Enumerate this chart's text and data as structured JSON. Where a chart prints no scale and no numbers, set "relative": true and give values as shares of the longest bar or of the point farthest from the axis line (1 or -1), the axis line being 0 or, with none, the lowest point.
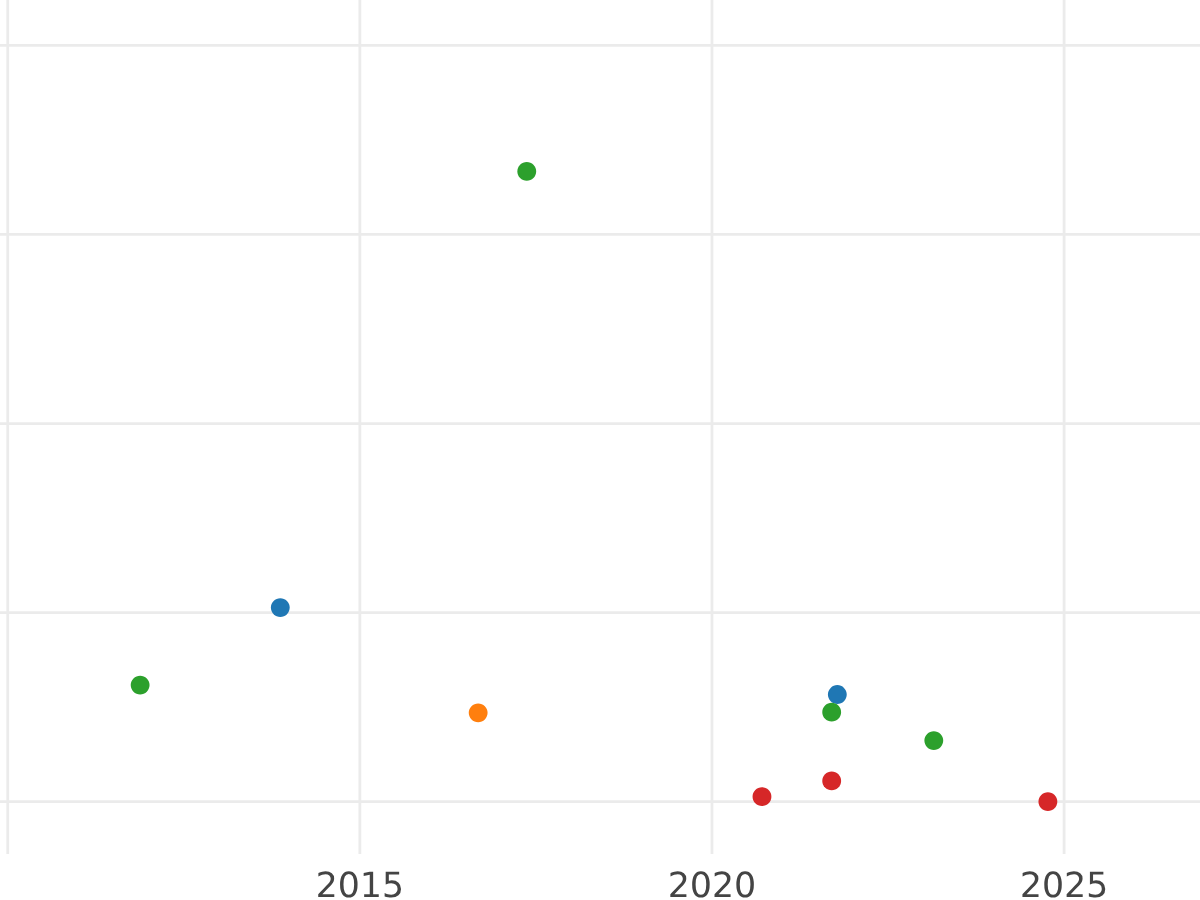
{
  "chart_data": {
    "type": "scatter",
    "relative": true,
    "xlim": [
      2009.89,
      2026.93
    ],
    "xticks": [
      {
        "value": 2010,
        "label": null
      },
      2015,
      2020,
      2025
    ],
    "grid": true,
    "marker": "circle",
    "tick_labels": "x",
    "series": [
      {
        "color": "#1f77b4",
        "x": [
          2013.87,
          2021.78
        ],
        "values": [
          0.308,
          0.17
        ]
      },
      {
        "color": "#ff7f0e",
        "x": [
          2016.68
        ],
        "values": [
          0.141
        ]
      },
      {
        "color": "#2ca02c",
        "x": [
          2011.88,
          2017.37,
          2021.7,
          2023.15
        ],
        "values": [
          0.185,
          1,
          0.142,
          0.097
        ]
      },
      {
        "color": "#d62728",
        "x": [
          2020.71,
          2021.7,
          2024.77
        ],
        "values": [
          0.008,
          0.033,
          0
        ]
      }
    ]
  }
}
